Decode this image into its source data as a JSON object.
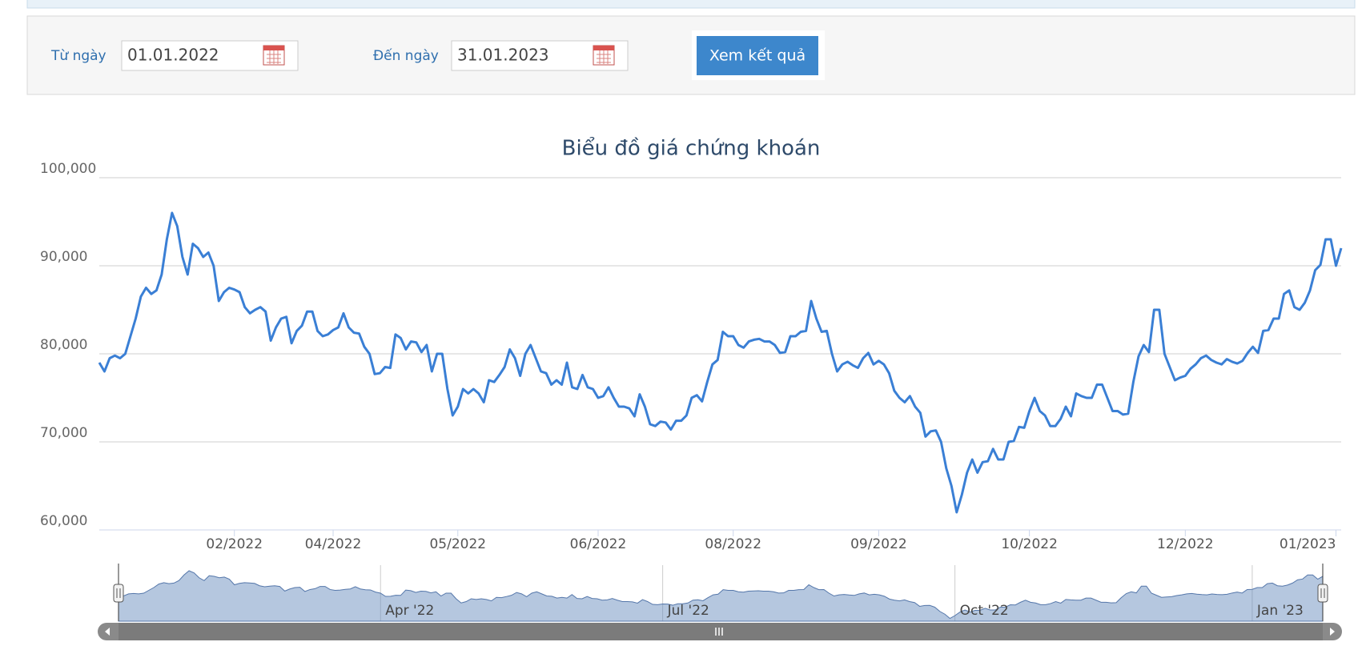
{
  "form": {
    "from_label": "Từ ngày",
    "from_value": "01.01.2022",
    "to_label": "Đến ngày",
    "to_value": "31.01.2023",
    "button": "Xem kết quả"
  },
  "chart_data": {
    "type": "line",
    "title": "Biểu đồ giá chứng khoán",
    "color": "#3a7fd5",
    "grid": true,
    "values": [
      79000,
      78000,
      79500,
      79800,
      79500,
      80000,
      82000,
      84000,
      86500,
      87500,
      86800,
      87200,
      89000,
      93000,
      96000,
      94500,
      91000,
      89000,
      92500,
      92000,
      91000,
      91500,
      90000,
      86000,
      87000,
      87500,
      87300,
      87000,
      85300,
      84600,
      85000,
      85300,
      84800,
      81500,
      83000,
      84000,
      84200,
      81200,
      82600,
      83200,
      84800,
      84800,
      82600,
      82000,
      82200,
      82700,
      83000,
      84600,
      83000,
      82400,
      82300,
      80800,
      80000,
      77700,
      77800,
      78500,
      78400,
      82200,
      81800,
      80500,
      81400,
      81300,
      80200,
      81000,
      78000,
      80000,
      80000,
      76000,
      73000,
      74000,
      76000,
      75500,
      76000,
      75500,
      74500,
      77000,
      76800,
      77600,
      78500,
      80500,
      79500,
      77500,
      80000,
      81000,
      79500,
      78000,
      77800,
      76500,
      77000,
      76500,
      79000,
      76200,
      76000,
      77600,
      76200,
      76000,
      75000,
      75200,
      76200,
      75000,
      74000,
      74000,
      73800,
      72900,
      75400,
      74000,
      72000,
      71800,
      72300,
      72200,
      71400,
      72400,
      72400,
      73000,
      75000,
      75300,
      74600,
      76800,
      78800,
      79300,
      82500,
      82000,
      82000,
      81000,
      80700,
      81400,
      81600,
      81700,
      81400,
      81400,
      81000,
      80100,
      80200,
      82000,
      82000,
      82500,
      82600,
      86000,
      84000,
      82500,
      82600,
      80000,
      78000,
      78800,
      79100,
      78700,
      78400,
      79500,
      80100,
      78800,
      79200,
      78800,
      77800,
      75800,
      75000,
      74500,
      75200,
      74000,
      73300,
      70600,
      71200,
      71300,
      70000,
      67000,
      65000,
      62000,
      64000,
      66500,
      68000,
      66500,
      67700,
      67800,
      69200,
      68000,
      68000,
      70000,
      70100,
      71700,
      71600,
      73500,
      75000,
      73500,
      73000,
      71800,
      71800,
      72600,
      74000,
      72900,
      75500,
      75200,
      75000,
      75000,
      76500,
      76500,
      75000,
      73500,
      73500,
      73100,
      73200,
      76800,
      79700,
      81000,
      80200,
      85000,
      85000,
      80000,
      78500,
      77000,
      77300,
      77500,
      78300,
      78800,
      79500,
      79800,
      79300,
      79000,
      78800,
      79400,
      79100,
      78900,
      79200,
      80100,
      80800,
      80100,
      82600,
      82700,
      84000,
      84000,
      86800,
      87200,
      85300,
      85000,
      85800,
      87200,
      89500,
      90100,
      93000,
      93000,
      90000,
      92000
    ],
    "xlim": [
      0,
      239
    ],
    "xticks": [
      {
        "value": 26,
        "label": "02/2022"
      },
      {
        "value": 45,
        "label": "04/2022"
      },
      {
        "value": 69,
        "label": "05/2022"
      },
      {
        "value": 96,
        "label": "06/2022"
      },
      {
        "value": 122,
        "label": "08/2022"
      },
      {
        "value": 150,
        "label": "09/2022"
      },
      {
        "value": 179,
        "label": "10/2022"
      },
      {
        "value": 209,
        "label": "12/2022"
      },
      {
        "value": 238,
        "label": "01/2023"
      }
    ],
    "ylim": [
      60000,
      100000
    ],
    "yticks": [
      {
        "value": 60000,
        "label": "60,000"
      },
      {
        "value": 70000,
        "label": "70,000"
      },
      {
        "value": 80000,
        "label": "80,000"
      },
      {
        "value": 90000,
        "label": "90,000"
      },
      {
        "value": 100000,
        "label": "100,000"
      }
    ],
    "navigator_ticks": [
      {
        "value": 52,
        "label": "Apr '22"
      },
      {
        "value": 108,
        "label": "Jul '22"
      },
      {
        "value": 166,
        "label": "Oct '22"
      },
      {
        "value": 225,
        "label": "Jan '23"
      }
    ]
  }
}
